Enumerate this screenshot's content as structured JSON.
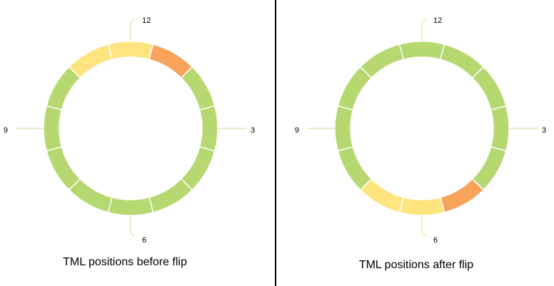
{
  "panels": [
    {
      "caption": "TML positions before flip",
      "hours": {
        "top": "12",
        "right": "3",
        "bottom": "6",
        "left": "9"
      },
      "segment_colors": [
        "#fde47f",
        "#f7a35c",
        "#b5d870",
        "#b5d870",
        "#b5d870",
        "#b5d870",
        "#b5d870",
        "#b5d870",
        "#b5d870",
        "#b5d870",
        "#b5d870",
        "#fde47f"
      ]
    },
    {
      "caption": "TML positions after flip",
      "hours": {
        "top": "12",
        "right": "3",
        "bottom": "6",
        "left": "9"
      },
      "segment_colors": [
        "#b5d870",
        "#b5d870",
        "#b5d870",
        "#b5d870",
        "#b5d870",
        "#f7a35c",
        "#fde47f",
        "#fde47f",
        "#b5d870",
        "#b5d870",
        "#b5d870",
        "#b5d870"
      ]
    }
  ]
}
